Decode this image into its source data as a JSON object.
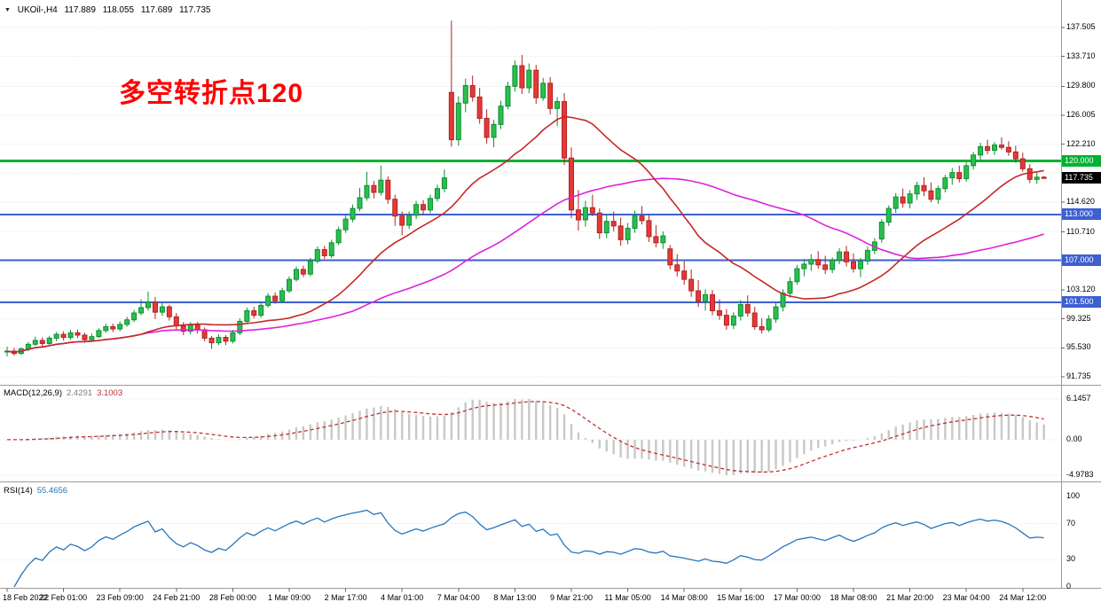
{
  "title": {
    "arrow": "▼",
    "symbol": "UKOil-,H4",
    "open": "117.889",
    "high": "118.055",
    "low": "117.689",
    "close": "117.735"
  },
  "annotation": {
    "text": "多空转折点120",
    "color": "#FF0000"
  },
  "colors": {
    "up": "#2ABE4E",
    "up_stroke": "#0E8F33",
    "down": "#E53935",
    "down_stroke": "#B02323",
    "ma_fast": "#C62828",
    "ma_slow": "#DD22DD",
    "hline_green": "#00B232",
    "hline_blue": "#3E5FD0",
    "macd_hist": "#C8C8C8",
    "macd_signal": "#C03030",
    "rsi": "#2676BE",
    "grid": "#E3E3E3",
    "separator": "#9A9A9A",
    "badge_current_bg": "#000000"
  },
  "price_axis": {
    "labels": [
      "137.505",
      "133.710",
      "129.800",
      "126.005",
      "122.210",
      "114.620",
      "110.710",
      "103.120",
      "99.325",
      "95.530",
      "91.735"
    ],
    "badges": [
      {
        "text": "120.000",
        "price": 120.0,
        "bg": "#00B232",
        "kind": "hline"
      },
      {
        "text": "117.735",
        "price": 117.735,
        "bg": "#000000",
        "kind": "current"
      },
      {
        "text": "113.000",
        "price": 113.0,
        "bg": "#3E5FD0",
        "kind": "hline"
      },
      {
        "text": "107.000",
        "price": 107.0,
        "bg": "#3E5FD0",
        "kind": "hline"
      },
      {
        "text": "101.500",
        "price": 101.5,
        "bg": "#3E5FD0",
        "kind": "hline"
      }
    ]
  },
  "hlines": [
    {
      "price": 120.0,
      "color": "#00B232",
      "width": 3
    },
    {
      "price": 113.0,
      "color": "#3E5FD0",
      "width": 2
    },
    {
      "price": 107.0,
      "color": "#3E5FD0",
      "width": 2
    },
    {
      "price": 101.5,
      "color": "#3E5FD0",
      "width": 2
    }
  ],
  "macd": {
    "label": "MACD(12,26,9)",
    "value_main": "2.4291",
    "value_signal": "3.1003",
    "axis_labels": [
      "6.1457",
      "0.00",
      "-4.9783"
    ],
    "fast": 12,
    "slow": 26,
    "signal": 9
  },
  "rsi": {
    "label": "RSI(14)",
    "value": "55.4656",
    "axis_labels": [
      "100",
      "70",
      "30",
      "0"
    ],
    "period": 14,
    "levels": [
      70,
      30
    ]
  },
  "chart_data": {
    "type": "candlestick",
    "symbol": "UKOil",
    "timeframe": "H4",
    "title": "UKOil-,H4",
    "ylim": [
      91.735,
      137.505
    ],
    "grid_levels": [
      137.505,
      133.71,
      129.8,
      126.005,
      122.21,
      118.415,
      114.62,
      110.71,
      106.915,
      103.12,
      99.325,
      95.53,
      91.735
    ],
    "ma_fast_period": 20,
    "ma_slow_period": 50,
    "x_labels": [
      "18 Feb 2022",
      "22 Feb 01:00",
      "23 Feb 09:00",
      "24 Feb 21:00",
      "28 Feb 00:00",
      "1 Mar 09:00",
      "2 Mar 17:00",
      "4 Mar 01:00",
      "7 Mar 04:00",
      "8 Mar 13:00",
      "9 Mar 21:00",
      "11 Mar 05:00",
      "14 Mar 08:00",
      "15 Mar 16:00",
      "17 Mar 00:00",
      "18 Mar 08:00",
      "21 Mar 20:00",
      "23 Mar 04:00",
      "24 Mar 12:00"
    ],
    "candles_format": [
      "open",
      "high",
      "low",
      "close"
    ],
    "candles": [
      [
        95.0,
        95.7,
        94.4,
        95.1
      ],
      [
        95.1,
        95.5,
        94.5,
        94.8
      ],
      [
        94.8,
        95.6,
        94.6,
        95.4
      ],
      [
        95.4,
        96.3,
        95.1,
        96.0
      ],
      [
        96.0,
        97.0,
        95.8,
        96.5
      ],
      [
        96.5,
        96.9,
        95.7,
        96.1
      ],
      [
        96.1,
        97.1,
        95.9,
        96.8
      ],
      [
        96.8,
        97.6,
        96.4,
        97.3
      ],
      [
        97.3,
        97.7,
        96.5,
        96.9
      ],
      [
        96.9,
        97.9,
        96.6,
        97.5
      ],
      [
        97.5,
        97.9,
        96.8,
        97.2
      ],
      [
        97.2,
        97.5,
        96.2,
        96.6
      ],
      [
        96.6,
        97.4,
        96.3,
        97.0
      ],
      [
        97.0,
        98.1,
        96.8,
        97.8
      ],
      [
        97.8,
        98.7,
        97.5,
        98.3
      ],
      [
        98.3,
        98.7,
        97.6,
        98.0
      ],
      [
        98.0,
        99.0,
        97.7,
        98.6
      ],
      [
        98.6,
        99.6,
        98.3,
        99.2
      ],
      [
        99.2,
        100.5,
        98.9,
        100.1
      ],
      [
        100.1,
        101.9,
        99.8,
        100.8
      ],
      [
        100.8,
        102.9,
        100.4,
        101.5
      ],
      [
        101.5,
        102.2,
        99.3,
        100.2
      ],
      [
        100.2,
        101.4,
        99.7,
        100.9
      ],
      [
        100.9,
        101.2,
        99.1,
        99.6
      ],
      [
        99.6,
        100.1,
        97.9,
        98.4
      ],
      [
        98.4,
        98.9,
        97.2,
        97.7
      ],
      [
        97.7,
        98.9,
        97.3,
        98.5
      ],
      [
        98.5,
        98.9,
        97.4,
        97.9
      ],
      [
        97.9,
        98.2,
        96.4,
        96.8
      ],
      [
        96.8,
        97.1,
        95.4,
        96.2
      ],
      [
        96.2,
        97.3,
        95.9,
        96.9
      ],
      [
        96.9,
        97.2,
        95.9,
        96.4
      ],
      [
        96.4,
        97.9,
        96.1,
        97.5
      ],
      [
        97.5,
        99.4,
        97.2,
        99.0
      ],
      [
        99.0,
        100.8,
        98.7,
        100.4
      ],
      [
        100.4,
        100.9,
        99.4,
        99.8
      ],
      [
        99.8,
        101.5,
        99.5,
        101.1
      ],
      [
        101.1,
        102.7,
        100.8,
        102.3
      ],
      [
        102.3,
        102.8,
        101.3,
        101.7
      ],
      [
        101.7,
        103.4,
        101.4,
        103.0
      ],
      [
        103.0,
        104.9,
        102.7,
        104.5
      ],
      [
        104.5,
        106.2,
        104.2,
        105.8
      ],
      [
        105.8,
        106.3,
        104.8,
        105.2
      ],
      [
        105.2,
        107.3,
        104.9,
        106.9
      ],
      [
        106.9,
        108.8,
        106.6,
        108.4
      ],
      [
        108.4,
        108.9,
        107.2,
        107.6
      ],
      [
        107.6,
        109.7,
        107.3,
        109.3
      ],
      [
        109.3,
        111.4,
        109.0,
        111.0
      ],
      [
        111.0,
        112.9,
        110.6,
        112.4
      ],
      [
        112.4,
        114.3,
        112.0,
        113.8
      ],
      [
        113.8,
        116.5,
        113.4,
        115.2
      ],
      [
        115.2,
        118.6,
        114.8,
        116.8
      ],
      [
        116.8,
        117.4,
        115.1,
        115.9
      ],
      [
        115.9,
        119.4,
        115.5,
        117.5
      ],
      [
        117.5,
        118.0,
        114.4,
        115.0
      ],
      [
        115.0,
        115.6,
        111.5,
        112.8
      ],
      [
        112.8,
        113.4,
        110.3,
        111.6
      ],
      [
        111.6,
        113.4,
        111.1,
        112.9
      ],
      [
        112.9,
        114.8,
        112.4,
        114.3
      ],
      [
        114.3,
        114.9,
        112.9,
        113.6
      ],
      [
        113.6,
        115.6,
        113.2,
        115.1
      ],
      [
        115.1,
        116.9,
        114.7,
        116.4
      ],
      [
        116.4,
        118.9,
        115.9,
        117.8
      ],
      [
        129.0,
        138.4,
        121.9,
        122.8
      ],
      [
        122.8,
        128.5,
        122.0,
        127.6
      ],
      [
        127.6,
        130.8,
        126.4,
        129.9
      ],
      [
        129.9,
        131.2,
        127.8,
        128.4
      ],
      [
        128.4,
        129.6,
        124.9,
        125.6
      ],
      [
        125.6,
        126.8,
        122.3,
        123.1
      ],
      [
        123.1,
        125.4,
        121.8,
        124.8
      ],
      [
        124.8,
        127.9,
        124.2,
        127.2
      ],
      [
        127.2,
        130.4,
        126.8,
        129.8
      ],
      [
        129.8,
        133.2,
        129.1,
        132.5
      ],
      [
        132.5,
        133.9,
        128.8,
        129.6
      ],
      [
        129.6,
        132.8,
        128.9,
        131.9
      ],
      [
        131.9,
        132.6,
        127.5,
        128.3
      ],
      [
        128.3,
        130.9,
        127.9,
        130.2
      ],
      [
        130.2,
        131.0,
        126.1,
        126.9
      ],
      [
        126.9,
        128.4,
        124.6,
        127.8
      ],
      [
        127.8,
        128.9,
        119.5,
        120.4
      ],
      [
        120.4,
        121.8,
        112.5,
        113.6
      ],
      [
        113.6,
        116.2,
        110.9,
        112.3
      ],
      [
        112.3,
        114.8,
        111.4,
        113.9
      ],
      [
        113.9,
        115.6,
        112.8,
        113.2
      ],
      [
        113.2,
        113.8,
        109.8,
        110.6
      ],
      [
        110.6,
        112.9,
        109.9,
        112.1
      ],
      [
        112.1,
        113.4,
        110.8,
        111.5
      ],
      [
        111.5,
        112.6,
        108.9,
        109.7
      ],
      [
        109.7,
        111.9,
        109.1,
        111.2
      ],
      [
        111.2,
        113.5,
        110.6,
        112.8
      ],
      [
        112.8,
        114.1,
        111.7,
        112.2
      ],
      [
        112.2,
        112.9,
        109.4,
        110.1
      ],
      [
        110.1,
        111.6,
        108.7,
        109.3
      ],
      [
        109.3,
        110.8,
        108.5,
        110.2
      ],
      [
        108.5,
        109.0,
        105.8,
        106.4
      ],
      [
        106.4,
        107.8,
        104.9,
        105.6
      ],
      [
        105.6,
        106.9,
        103.8,
        104.5
      ],
      [
        104.5,
        105.8,
        102.2,
        103.0
      ],
      [
        103.0,
        104.4,
        100.9,
        101.6
      ],
      [
        101.6,
        103.2,
        100.4,
        102.5
      ],
      [
        102.5,
        103.1,
        99.8,
        100.4
      ],
      [
        100.4,
        101.9,
        99.2,
        99.8
      ],
      [
        99.8,
        100.6,
        97.9,
        98.5
      ],
      [
        98.5,
        100.2,
        98.0,
        99.7
      ],
      [
        99.7,
        101.8,
        99.1,
        101.2
      ],
      [
        101.2,
        102.4,
        99.6,
        100.1
      ],
      [
        100.1,
        100.9,
        97.9,
        98.3
      ],
      [
        98.3,
        99.4,
        97.4,
        97.9
      ],
      [
        97.9,
        99.8,
        97.6,
        99.3
      ],
      [
        99.3,
        101.4,
        98.8,
        100.9
      ],
      [
        100.9,
        103.2,
        100.3,
        102.7
      ],
      [
        102.7,
        104.8,
        102.1,
        104.2
      ],
      [
        104.2,
        106.4,
        103.8,
        105.9
      ],
      [
        105.9,
        107.2,
        104.9,
        106.5
      ],
      [
        106.5,
        107.8,
        105.6,
        107.1
      ],
      [
        107.1,
        108.2,
        105.9,
        106.4
      ],
      [
        106.4,
        107.6,
        105.2,
        105.8
      ],
      [
        105.8,
        107.4,
        105.3,
        107.0
      ],
      [
        107.0,
        108.6,
        106.5,
        108.1
      ],
      [
        108.1,
        108.9,
        106.2,
        106.8
      ],
      [
        106.8,
        107.9,
        105.4,
        105.9
      ],
      [
        105.9,
        107.3,
        104.8,
        106.9
      ],
      [
        106.9,
        108.8,
        106.4,
        108.3
      ],
      [
        108.3,
        109.9,
        107.8,
        109.4
      ],
      [
        109.8,
        112.4,
        109.3,
        112.0
      ],
      [
        112.0,
        114.2,
        111.5,
        113.8
      ],
      [
        113.8,
        115.8,
        113.2,
        115.3
      ],
      [
        115.3,
        116.4,
        113.9,
        114.5
      ],
      [
        114.5,
        116.2,
        113.8,
        115.7
      ],
      [
        115.7,
        117.3,
        114.9,
        116.8
      ],
      [
        116.8,
        117.9,
        115.4,
        116.1
      ],
      [
        116.1,
        117.2,
        114.6,
        115.0
      ],
      [
        115.0,
        116.8,
        114.4,
        116.4
      ],
      [
        116.4,
        118.2,
        115.9,
        117.8
      ],
      [
        117.8,
        119.1,
        116.9,
        118.5
      ],
      [
        118.5,
        119.4,
        117.2,
        117.7
      ],
      [
        117.7,
        119.8,
        117.3,
        119.4
      ],
      [
        119.4,
        121.2,
        118.9,
        120.8
      ],
      [
        120.8,
        122.4,
        120.2,
        121.9
      ],
      [
        121.9,
        122.8,
        120.9,
        121.4
      ],
      [
        121.4,
        122.5,
        120.8,
        122.1
      ],
      [
        122.1,
        123.1,
        121.5,
        121.8
      ],
      [
        121.8,
        122.6,
        120.7,
        121.2
      ],
      [
        121.2,
        122.0,
        119.8,
        120.3
      ],
      [
        120.3,
        121.1,
        118.6,
        119.0
      ],
      [
        119.0,
        119.6,
        117.1,
        117.6
      ],
      [
        117.6,
        118.5,
        117.0,
        117.89
      ],
      [
        117.889,
        118.055,
        117.689,
        117.735
      ]
    ]
  }
}
